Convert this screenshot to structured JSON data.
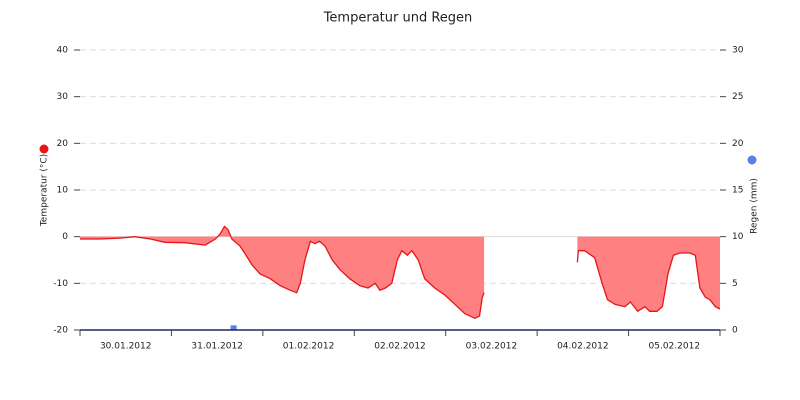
{
  "chart_data": {
    "type": "line",
    "title": "Temperatur und Regen",
    "ylabel": "Temperatur (°C)",
    "y2label": "Regen (mm)",
    "xlim": [
      0,
      7
    ],
    "xticks": [
      {
        "value": 0.5,
        "label": "30.01.2012"
      },
      {
        "value": 1.5,
        "label": "31.01.2012"
      },
      {
        "value": 2.5,
        "label": "01.02.2012"
      },
      {
        "value": 3.5,
        "label": "02.02.2012"
      },
      {
        "value": 4.5,
        "label": "03.02.2012"
      },
      {
        "value": 5.5,
        "label": "04.02.2012"
      },
      {
        "value": 6.5,
        "label": "05.02.2012"
      }
    ],
    "ylim": [
      -20,
      40
    ],
    "yticks": [
      -20,
      -10,
      0,
      10,
      20,
      30,
      40
    ],
    "y2lim": [
      0,
      30
    ],
    "y2ticks": [
      0,
      5,
      10,
      15,
      20,
      25,
      30
    ],
    "grid": true,
    "series": [
      {
        "name": "Temperatur",
        "color": "#e8141a",
        "fill": "#ff8080",
        "x": [
          0,
          0.22,
          0.44,
          0.6,
          0.77,
          0.93,
          1.15,
          1.37,
          1.48,
          1.53,
          1.58,
          1.62,
          1.66,
          1.75,
          1.8,
          1.88,
          1.97,
          2.08,
          2.19,
          2.3,
          2.37,
          2.41,
          2.46,
          2.52,
          2.57,
          2.62,
          2.68,
          2.76,
          2.84,
          2.95,
          3.06,
          3.15,
          3.23,
          3.28,
          3.34,
          3.41,
          3.47,
          3.52,
          3.58,
          3.63,
          3.7,
          3.77,
          3.88,
          3.99,
          4.1,
          4.21,
          4.32,
          4.37,
          4.4,
          4.42,
          4.7,
          5.44,
          5.45,
          5.52,
          5.63,
          5.71,
          5.77,
          5.85,
          5.96,
          6.02,
          6.1,
          6.18,
          6.23,
          6.31,
          6.37,
          6.43,
          6.49,
          6.56,
          6.67,
          6.73,
          6.78,
          6.84,
          6.89,
          6.95,
          7
        ],
        "values": [
          -0.5,
          -0.5,
          -0.3,
          0,
          -0.5,
          -1.2,
          -1.3,
          -1.8,
          -0.5,
          0.5,
          2.2,
          1.5,
          -0.5,
          -2,
          -3.5,
          -6,
          -8,
          -9,
          -10.5,
          -11.5,
          -12,
          -10,
          -5,
          -1,
          -1.5,
          -1,
          -2,
          -5,
          -7,
          -9,
          -10.5,
          -11,
          -10,
          -11.5,
          -11,
          -10,
          -5,
          -3,
          -4,
          -3,
          -5,
          -9,
          -11,
          -12.5,
          -14.5,
          -16.5,
          -17.5,
          -17,
          -13,
          -12,
          null,
          -5.5,
          -3,
          -3,
          -4.5,
          -10,
          -13.5,
          -14.5,
          -15,
          -14,
          -16,
          -15,
          -16,
          -16,
          -15,
          -8,
          -4,
          -3.5,
          -3.5,
          -4,
          -11,
          -13,
          -13.5,
          -15,
          -15.5
        ]
      },
      {
        "name": "Regen",
        "color": "#5b7fe6",
        "axis": "y2",
        "type": "bar",
        "x": [
          1.68
        ],
        "values": [
          0.5
        ]
      }
    ]
  }
}
